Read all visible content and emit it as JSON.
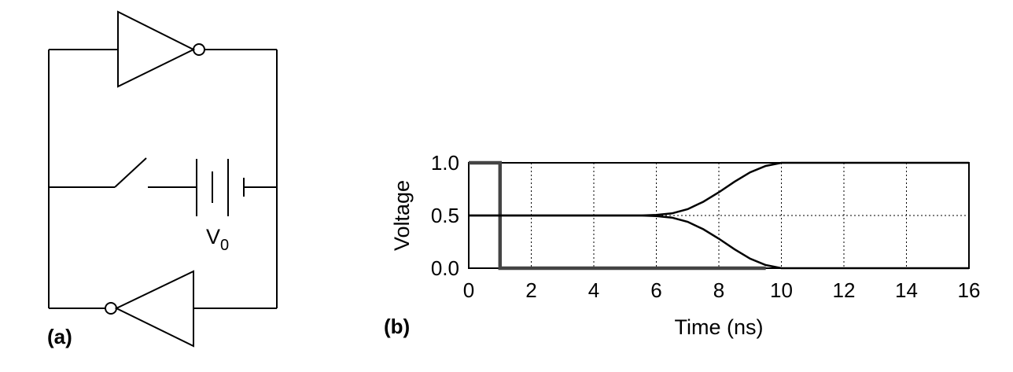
{
  "panel_a": {
    "label": "(a)",
    "battery_label": "V",
    "battery_subscript": "0"
  },
  "panel_b": {
    "label": "(b)"
  },
  "chart_data": {
    "type": "line",
    "xlabel": "Time (ns)",
    "ylabel": "Voltage",
    "xlim": [
      0,
      16
    ],
    "ylim": [
      0,
      1
    ],
    "x_ticks": [
      "0",
      "2",
      "4",
      "6",
      "8",
      "10",
      "12",
      "14",
      "16"
    ],
    "y_ticks": [
      "0.0",
      "0.5",
      "1.0"
    ],
    "grid": true,
    "colors": {
      "trace": "#000000",
      "pulse": "#444444"
    },
    "series": [
      {
        "x": [
          0,
          1,
          1,
          9.5
        ],
        "y": [
          1.0,
          1.0,
          0.0,
          0.0
        ]
      },
      {
        "x": [
          0,
          5.5,
          6,
          6.5,
          7,
          7.5,
          8,
          8.5,
          9,
          9.5,
          10,
          16
        ],
        "y": [
          0.5,
          0.5,
          0.505,
          0.52,
          0.56,
          0.63,
          0.72,
          0.82,
          0.91,
          0.97,
          1.0,
          1.0
        ]
      },
      {
        "x": [
          0,
          5.5,
          6,
          6.5,
          7,
          7.5,
          8,
          8.5,
          9,
          9.5,
          10,
          16
        ],
        "y": [
          0.5,
          0.5,
          0.495,
          0.48,
          0.44,
          0.37,
          0.28,
          0.18,
          0.09,
          0.03,
          0.0,
          0.0
        ]
      }
    ]
  }
}
